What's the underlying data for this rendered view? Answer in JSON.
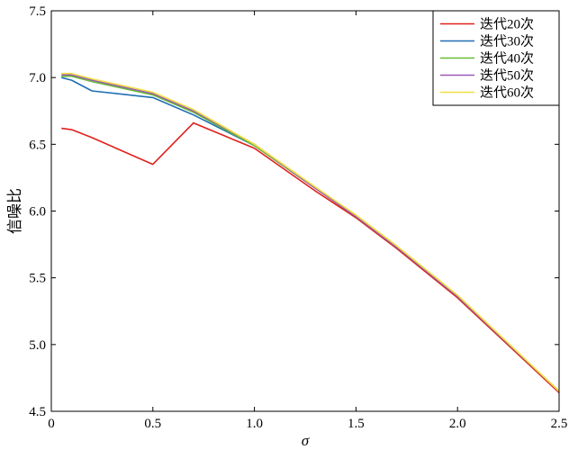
{
  "chart_data": {
    "type": "line",
    "xlabel": "σ",
    "ylabel": "信噪比",
    "xlim": [
      0,
      2.5
    ],
    "ylim": [
      4.5,
      7.5
    ],
    "xticks": [
      "0",
      "0.5",
      "1.0",
      "1.5",
      "2.0",
      "2.5"
    ],
    "yticks": [
      "4.5",
      "5.0",
      "5.5",
      "6.0",
      "6.5",
      "7.0",
      "7.5"
    ],
    "grid": false,
    "legend_position": "top-right",
    "series": [
      {
        "name": "迭代20次",
        "color": "#e0201b",
        "x": [
          0.05,
          0.1,
          0.2,
          0.5,
          0.7,
          1.0,
          1.3,
          1.5,
          1.7,
          2.0,
          2.5
        ],
        "y": [
          6.62,
          6.61,
          6.55,
          6.35,
          6.66,
          6.47,
          6.15,
          5.95,
          5.72,
          5.35,
          4.64
        ]
      },
      {
        "name": "迭代30次",
        "color": "#1f6fb4",
        "x": [
          0.05,
          0.1,
          0.2,
          0.5,
          0.7,
          1.0,
          1.3,
          1.5,
          1.7,
          2.0,
          2.5
        ],
        "y": [
          7.0,
          6.98,
          6.9,
          6.85,
          6.72,
          6.49,
          6.17,
          5.96,
          5.73,
          5.36,
          4.65
        ]
      },
      {
        "name": "迭代40次",
        "color": "#66bb33",
        "x": [
          0.05,
          0.1,
          0.2,
          0.5,
          0.7,
          1.0,
          1.3,
          1.5,
          1.7,
          2.0,
          2.5
        ],
        "y": [
          7.01,
          7.01,
          6.97,
          6.87,
          6.74,
          6.49,
          6.17,
          5.96,
          5.73,
          5.36,
          4.65
        ]
      },
      {
        "name": "迭代50次",
        "color": "#9b59b6",
        "x": [
          0.05,
          0.1,
          0.2,
          0.5,
          0.7,
          1.0,
          1.3,
          1.5,
          1.7,
          2.0,
          2.5
        ],
        "y": [
          7.02,
          7.02,
          6.98,
          6.88,
          6.75,
          6.5,
          6.17,
          5.96,
          5.73,
          5.36,
          4.65
        ]
      },
      {
        "name": "迭代60次",
        "color": "#f0e040",
        "x": [
          0.05,
          0.1,
          0.2,
          0.5,
          0.7,
          1.0,
          1.3,
          1.5,
          1.7,
          2.0,
          2.5
        ],
        "y": [
          7.03,
          7.03,
          6.99,
          6.89,
          6.76,
          6.5,
          6.18,
          5.97,
          5.74,
          5.37,
          4.65
        ]
      }
    ]
  }
}
